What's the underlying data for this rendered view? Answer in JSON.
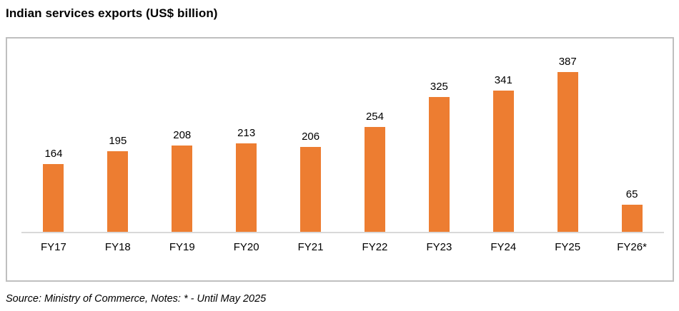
{
  "page": {
    "title": "Indian services exports (US$ billion)",
    "source_note": "Source: Ministry of Commerce, Notes: * - Until May 2025"
  },
  "chart_data": {
    "type": "bar",
    "title": "Indian services exports (US$ billion)",
    "categories": [
      "FY17",
      "FY18",
      "FY19",
      "FY20",
      "FY21",
      "FY22",
      "FY23",
      "FY24",
      "FY25",
      "FY26*"
    ],
    "values": [
      164,
      195,
      208,
      213,
      206,
      254,
      325,
      341,
      387,
      65
    ],
    "xlabel": "",
    "ylabel": "",
    "ylim": [
      0,
      450
    ],
    "grid": false,
    "legend": false,
    "data_labels": true,
    "bar_color": "#ed7d31",
    "axis_line_color": "#d9d9d9",
    "frame_border_color": "#bfbfbf",
    "label_color": "#000000",
    "note": "Bars show annual Indian services exports; FY26* is partial, until May 2025"
  }
}
